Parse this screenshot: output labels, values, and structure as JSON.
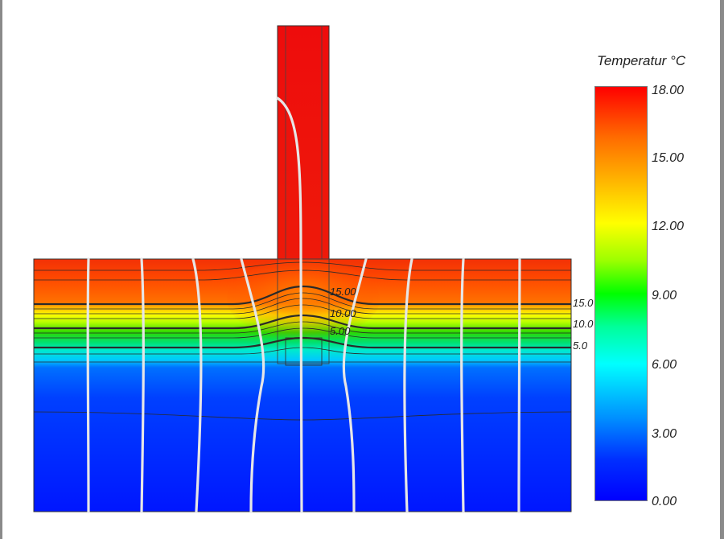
{
  "legend": {
    "title": "Temperatur °C",
    "ticks": [
      "18.00",
      "15.00",
      "12.00",
      "9.00",
      "6.00",
      "3.00",
      "0.00"
    ]
  },
  "contour_labels": {
    "center": [
      "15.00",
      "10.00",
      "5.00"
    ],
    "edge": [
      "15.0",
      "10.0",
      "5.0"
    ]
  },
  "colors": {
    "warm": "#ff2000",
    "hot": "#e81008",
    "cold": "#0020ff",
    "heat_flow_line": "#e6e6e6"
  }
}
